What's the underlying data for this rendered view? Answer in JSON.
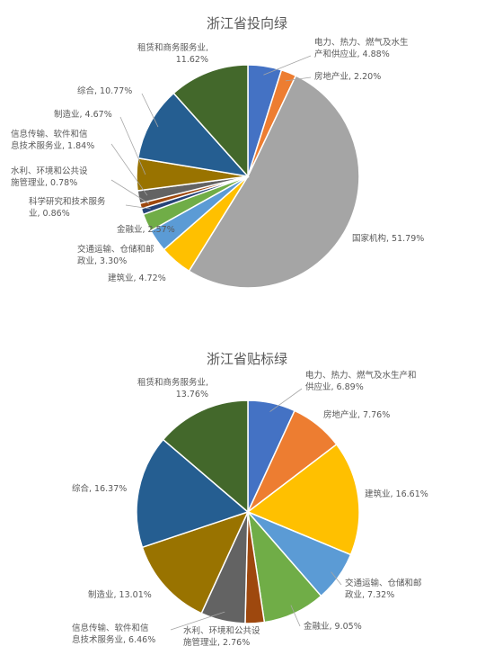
{
  "chart_data": [
    {
      "type": "pie",
      "title": "浙江省投向绿",
      "slices": [
        {
          "label_lines": [
            "电力、热力、燃气及水生",
            "产和供应业, 4.88%"
          ],
          "value": 4.88,
          "color": "#4472c4"
        },
        {
          "label_lines": [
            "房地产业, 2.20%"
          ],
          "value": 2.2,
          "color": "#ed7d31"
        },
        {
          "label_lines": [
            "国家机构, 51.79%"
          ],
          "value": 51.79,
          "color": "#a5a5a5"
        },
        {
          "label_lines": [
            "建筑业, 4.72%"
          ],
          "value": 4.72,
          "color": "#ffc000"
        },
        {
          "label_lines": [
            "交通运输、仓储和邮",
            "政业, 3.30%"
          ],
          "value": 3.3,
          "color": "#5b9bd5"
        },
        {
          "label_lines": [
            "金融业, 2.57%"
          ],
          "value": 2.57,
          "color": "#70ad47"
        },
        {
          "label_lines": [
            "科学研究和技术服务",
            "业, 0.86%"
          ],
          "value": 0.86,
          "color": "#264478"
        },
        {
          "label_lines": [
            "水利、环境和公共设",
            "施管理业, 0.78%"
          ],
          "value": 0.78,
          "color": "#9e480e"
        },
        {
          "label_lines": [
            "信息传输、软件和信",
            "息技术服务业, 1.84%"
          ],
          "value": 1.84,
          "color": "#636363"
        },
        {
          "label_lines": [
            "制造业, 4.67%"
          ],
          "value": 4.67,
          "color": "#997300"
        },
        {
          "label_lines": [
            "综合, 10.77%"
          ],
          "value": 10.77,
          "color": "#255e91"
        },
        {
          "label_lines": [
            "租赁和商务服务业,",
            "11.62%"
          ],
          "value": 11.62,
          "color": "#43682b"
        }
      ]
    },
    {
      "type": "pie",
      "title": "浙江省贴标绿",
      "slices": [
        {
          "label_lines": [
            "电力、热力、燃气及水生产和",
            "供应业, 6.89%"
          ],
          "value": 6.89,
          "color": "#4472c4"
        },
        {
          "label_lines": [
            "房地产业, 7.76%"
          ],
          "value": 7.76,
          "color": "#ed7d31"
        },
        {
          "label_lines": [
            "建筑业, 16.61%"
          ],
          "value": 16.61,
          "color": "#ffc000"
        },
        {
          "label_lines": [
            "交通运输、仓储和邮",
            "政业, 7.32%"
          ],
          "value": 7.32,
          "color": "#5b9bd5"
        },
        {
          "label_lines": [
            "金融业, 9.05%"
          ],
          "value": 9.05,
          "color": "#70ad47"
        },
        {
          "label_lines": [
            "水利、环境和公共设",
            "施管理业, 2.76%"
          ],
          "value": 2.76,
          "color": "#9e480e"
        },
        {
          "label_lines": [
            "信息传输、软件和信",
            "息技术服务业, 6.46%"
          ],
          "value": 6.46,
          "color": "#636363"
        },
        {
          "label_lines": [
            "制造业, 13.01%"
          ],
          "value": 13.01,
          "color": "#997300"
        },
        {
          "label_lines": [
            "综合, 16.37%"
          ],
          "value": 16.37,
          "color": "#255e91"
        },
        {
          "label_lines": [
            "租赁和商务服务业,",
            "13.76%"
          ],
          "value": 13.76,
          "color": "#43682b"
        }
      ]
    }
  ]
}
